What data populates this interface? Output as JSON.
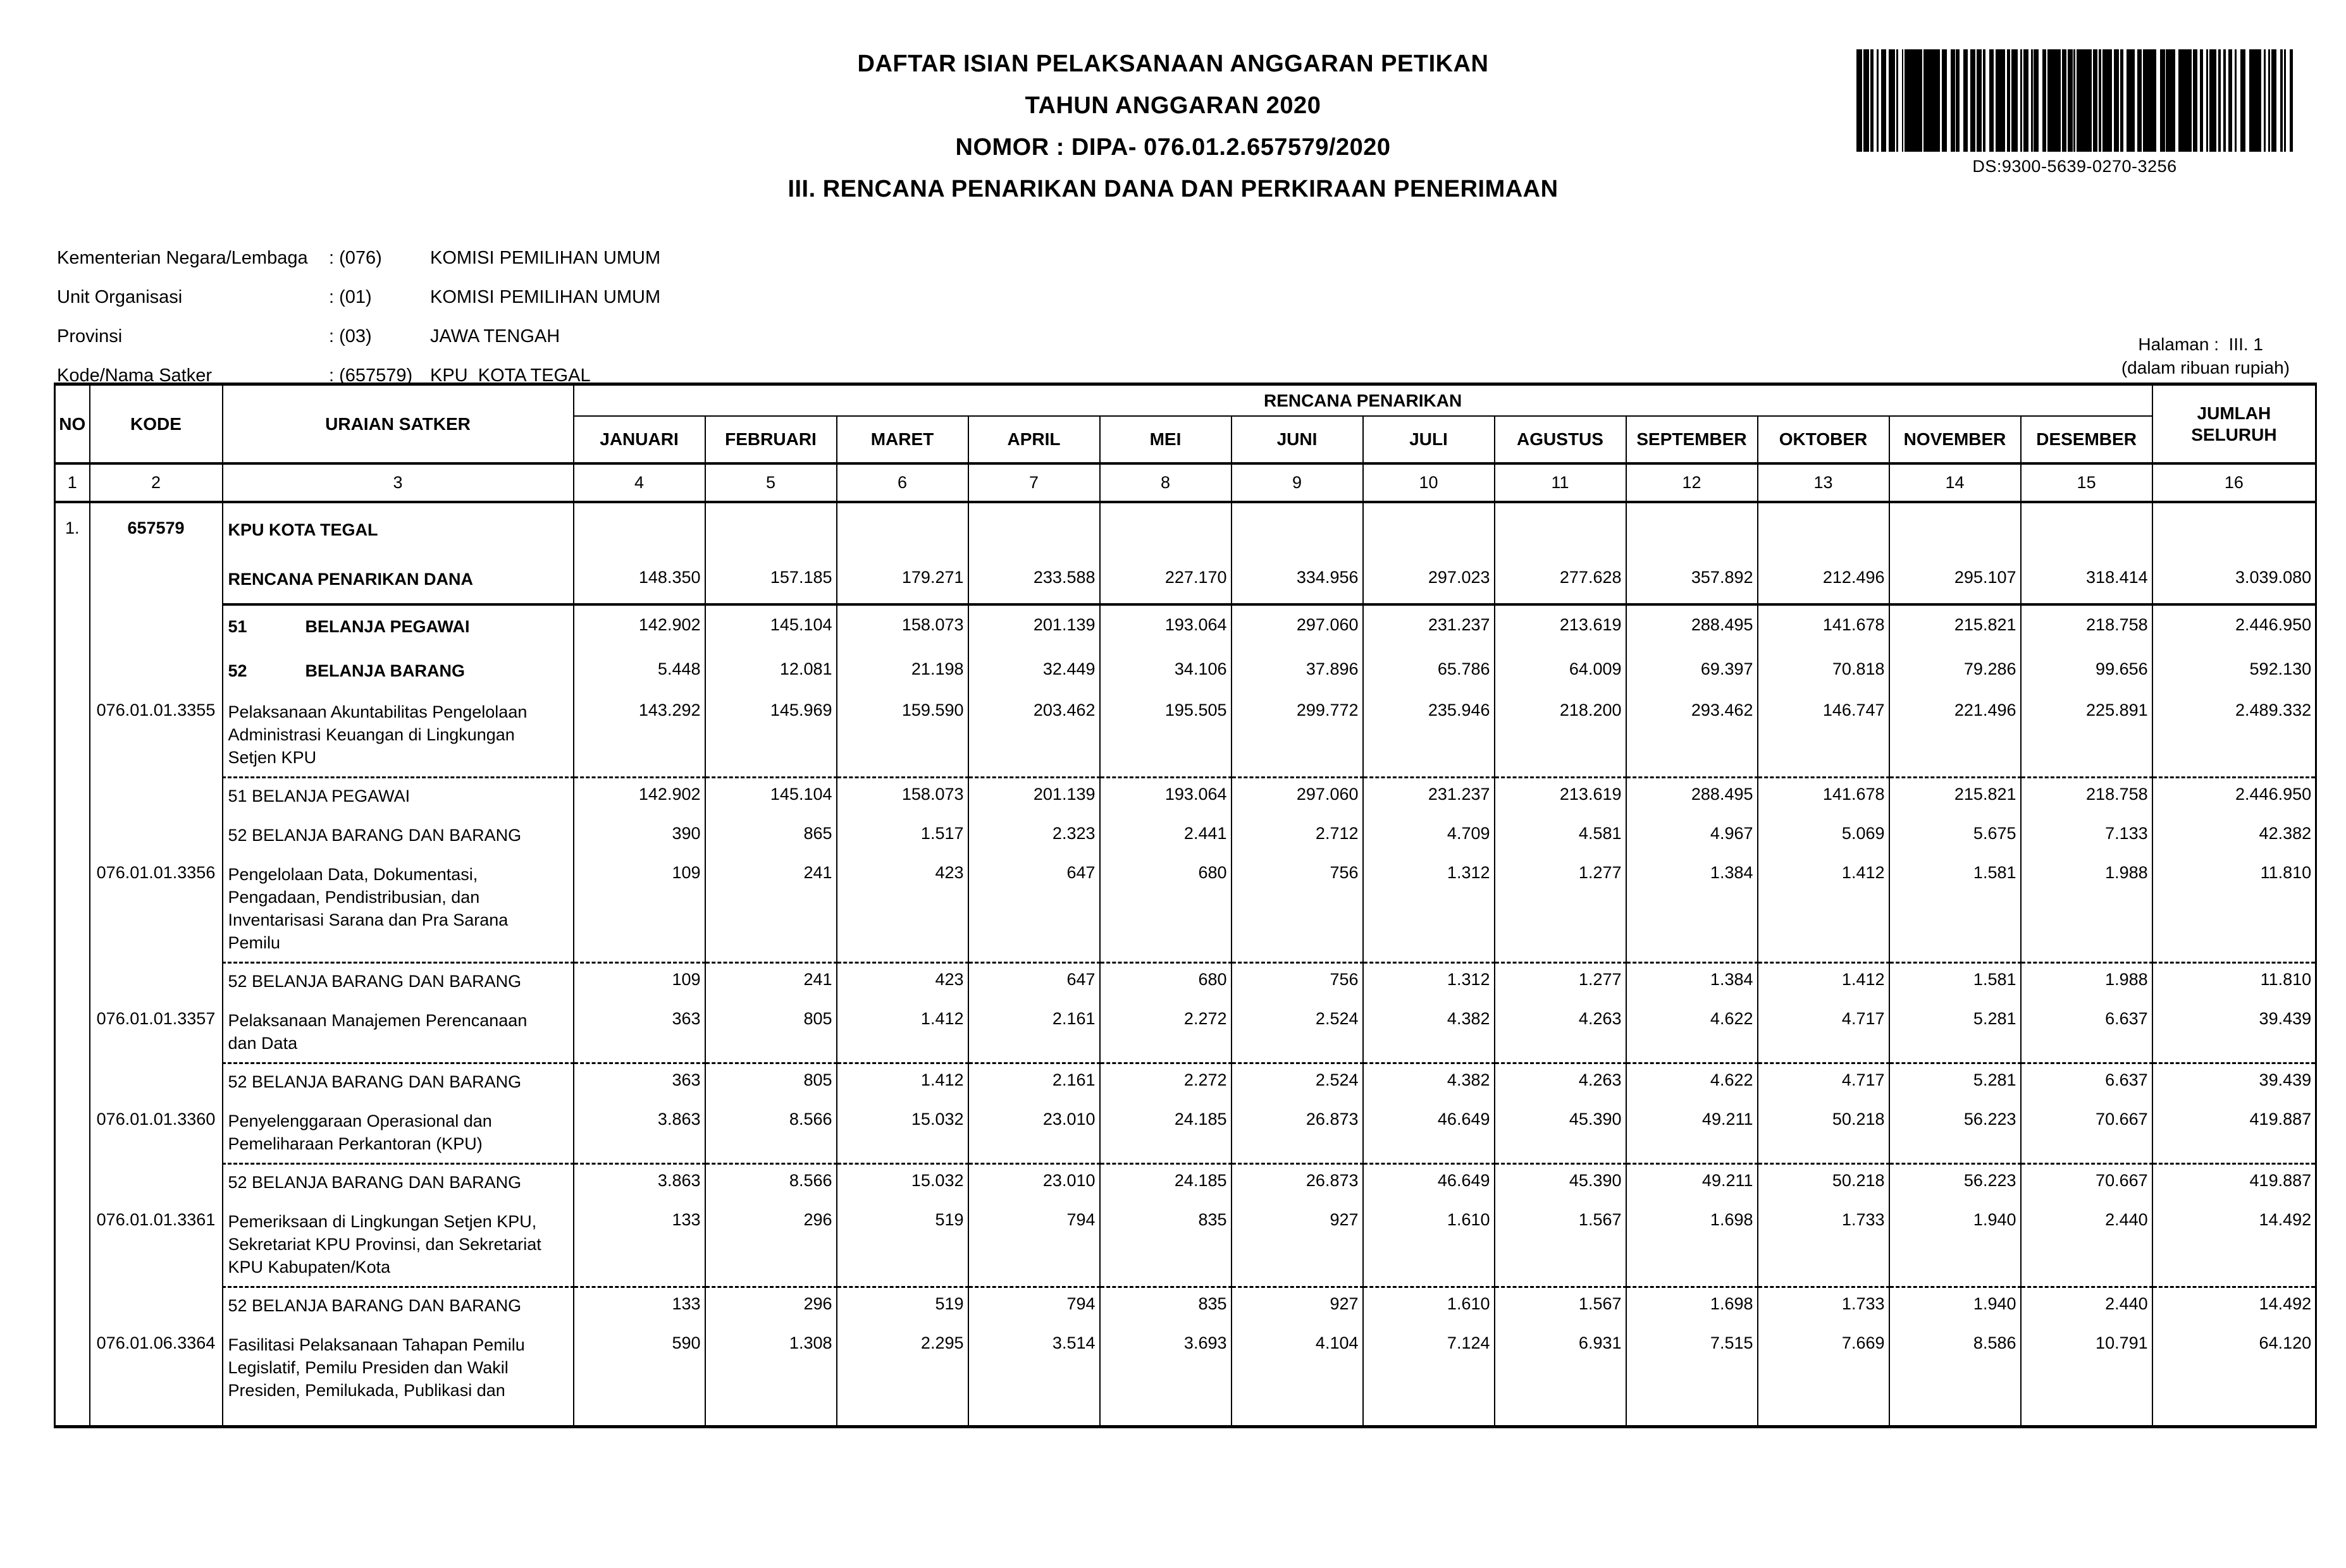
{
  "doc": {
    "title1": "DAFTAR ISIAN PELAKSANAAN ANGGARAN PETIKAN",
    "title2": "TAHUN ANGGARAN 2020",
    "title3": "NOMOR :  DIPA- 076.01.2.657579/2020",
    "title4": "III. RENCANA PENARIKAN DANA DAN PERKIRAAN PENERIMAAN",
    "barcode_caption": "DS:9300-5639-0270-3256",
    "halaman": "Halaman :  III. 1",
    "unit_note": "(dalam ribuan rupiah)"
  },
  "meta": {
    "rows": [
      {
        "label": "Kementerian Negara/Lembaga",
        "code": ": (076)",
        "value": "KOMISI PEMILIHAN UMUM"
      },
      {
        "label": "Unit Organisasi",
        "code": ": (01)",
        "value": "KOMISI PEMILIHAN UMUM"
      },
      {
        "label": "Provinsi",
        "code": ": (03)",
        "value": "JAWA TENGAH"
      },
      {
        "label": "Kode/Nama Satker",
        "code": ": (657579)",
        "value": "KPU  KOTA TEGAL"
      }
    ]
  },
  "table": {
    "headers": {
      "no": "NO",
      "kode": "KODE",
      "uraian": "URAIAN SATKER",
      "group": "RENCANA PENARIKAN",
      "total": "JUMLAH SELURUH"
    },
    "months": [
      "JANUARI",
      "FEBRUARI",
      "MARET",
      "APRIL",
      "MEI",
      "JUNI",
      "JULI",
      "AGUSTUS",
      "SEPTEMBER",
      "OKTOBER",
      "NOVEMBER",
      "DESEMBER"
    ],
    "col_numbers": [
      "1",
      "2",
      "3",
      "4",
      "5",
      "6",
      "7",
      "8",
      "9",
      "10",
      "11",
      "12",
      "13",
      "14",
      "15",
      "16"
    ],
    "rows": [
      {
        "type": "satker",
        "no": "1.",
        "kode": "657579",
        "kode_bold": true,
        "bold": true,
        "uraian": [
          "KPU  KOTA TEGAL"
        ],
        "values": null
      },
      {
        "type": "subtotal",
        "bold": true,
        "solid_bottom": true,
        "uraian": [
          "RENCANA PENARIKAN DANA"
        ],
        "values": [
          "148.350",
          "157.185",
          "179.271",
          "233.588",
          "227.170",
          "334.956",
          "297.023",
          "277.628",
          "357.892",
          "212.496",
          "295.107",
          "318.414",
          "3.039.080"
        ]
      },
      {
        "type": "acct-main",
        "bold": true,
        "code2": "51",
        "uraian": [
          "BELANJA PEGAWAI"
        ],
        "values": [
          "142.902",
          "145.104",
          "158.073",
          "201.139",
          "193.064",
          "297.060",
          "231.237",
          "213.619",
          "288.495",
          "141.678",
          "215.821",
          "218.758",
          "2.446.950"
        ]
      },
      {
        "type": "acct-main",
        "bold": true,
        "code2": "52",
        "uraian": [
          "BELANJA BARANG"
        ],
        "values": [
          "5.448",
          "12.081",
          "21.198",
          "32.449",
          "34.106",
          "37.896",
          "65.786",
          "64.009",
          "69.397",
          "70.818",
          "79.286",
          "99.656",
          "592.130"
        ]
      },
      {
        "type": "program",
        "kode": "076.01.01.3355",
        "uraian": [
          "Pelaksanaan Akuntabilitas Pengelolaan",
          "Administrasi Keuangan di Lingkungan",
          "Setjen KPU"
        ],
        "values": [
          "143.292",
          "145.969",
          "159.590",
          "203.462",
          "195.505",
          "299.772",
          "235.946",
          "218.200",
          "293.462",
          "146.747",
          "221.496",
          "225.891",
          "2.489.332"
        ]
      },
      {
        "type": "acct",
        "dashed_top": true,
        "uraian": [
          "51 BELANJA PEGAWAI"
        ],
        "values": [
          "142.902",
          "145.104",
          "158.073",
          "201.139",
          "193.064",
          "297.060",
          "231.237",
          "213.619",
          "288.495",
          "141.678",
          "215.821",
          "218.758",
          "2.446.950"
        ]
      },
      {
        "type": "acct",
        "uraian": [
          "52 BELANJA BARANG DAN BARANG"
        ],
        "values": [
          "390",
          "865",
          "1.517",
          "2.323",
          "2.441",
          "2.712",
          "4.709",
          "4.581",
          "4.967",
          "5.069",
          "5.675",
          "7.133",
          "42.382"
        ]
      },
      {
        "type": "program",
        "kode": "076.01.01.3356",
        "uraian": [
          "Pengelolaan Data, Dokumentasi,",
          "Pengadaan, Pendistribusian, dan",
          "Inventarisasi Sarana dan Pra Sarana",
          "Pemilu"
        ],
        "values": [
          "109",
          "241",
          "423",
          "647",
          "680",
          "756",
          "1.312",
          "1.277",
          "1.384",
          "1.412",
          "1.581",
          "1.988",
          "11.810"
        ]
      },
      {
        "type": "acct",
        "dashed_top": true,
        "uraian": [
          "52 BELANJA BARANG DAN BARANG"
        ],
        "values": [
          "109",
          "241",
          "423",
          "647",
          "680",
          "756",
          "1.312",
          "1.277",
          "1.384",
          "1.412",
          "1.581",
          "1.988",
          "11.810"
        ]
      },
      {
        "type": "program",
        "kode": "076.01.01.3357",
        "uraian": [
          "Pelaksanaan Manajemen Perencanaan",
          "dan Data"
        ],
        "values": [
          "363",
          "805",
          "1.412",
          "2.161",
          "2.272",
          "2.524",
          "4.382",
          "4.263",
          "4.622",
          "4.717",
          "5.281",
          "6.637",
          "39.439"
        ]
      },
      {
        "type": "acct",
        "dashed_top": true,
        "uraian": [
          "52 BELANJA BARANG DAN BARANG"
        ],
        "values": [
          "363",
          "805",
          "1.412",
          "2.161",
          "2.272",
          "2.524",
          "4.382",
          "4.263",
          "4.622",
          "4.717",
          "5.281",
          "6.637",
          "39.439"
        ]
      },
      {
        "type": "program",
        "kode": "076.01.01.3360",
        "uraian": [
          "Penyelenggaraan Operasional dan",
          "Pemeliharaan Perkantoran (KPU)"
        ],
        "values": [
          "3.863",
          "8.566",
          "15.032",
          "23.010",
          "24.185",
          "26.873",
          "46.649",
          "45.390",
          "49.211",
          "50.218",
          "56.223",
          "70.667",
          "419.887"
        ]
      },
      {
        "type": "acct",
        "dashed_top": true,
        "uraian": [
          "52 BELANJA BARANG DAN BARANG"
        ],
        "values": [
          "3.863",
          "8.566",
          "15.032",
          "23.010",
          "24.185",
          "26.873",
          "46.649",
          "45.390",
          "49.211",
          "50.218",
          "56.223",
          "70.667",
          "419.887"
        ]
      },
      {
        "type": "program",
        "kode": "076.01.01.3361",
        "uraian": [
          "Pemeriksaan di Lingkungan Setjen KPU,",
          "Sekretariat KPU Provinsi, dan Sekretariat",
          "KPU Kabupaten/Kota"
        ],
        "values": [
          "133",
          "296",
          "519",
          "794",
          "835",
          "927",
          "1.610",
          "1.567",
          "1.698",
          "1.733",
          "1.940",
          "2.440",
          "14.492"
        ]
      },
      {
        "type": "acct",
        "dashed_top": true,
        "uraian": [
          "52 BELANJA BARANG DAN BARANG"
        ],
        "values": [
          "133",
          "296",
          "519",
          "794",
          "835",
          "927",
          "1.610",
          "1.567",
          "1.698",
          "1.733",
          "1.940",
          "2.440",
          "14.492"
        ]
      },
      {
        "type": "program",
        "kode": "076.01.06.3364",
        "uraian": [
          "Fasilitasi Pelaksanaan Tahapan Pemilu",
          "Legislatif, Pemilu Presiden dan Wakil",
          "Presiden, Pemilukada, Publikasi dan"
        ],
        "values": [
          "590",
          "1.308",
          "2.295",
          "3.514",
          "3.693",
          "4.104",
          "7.124",
          "6.931",
          "7.515",
          "7.669",
          "8.586",
          "10.791",
          "64.120"
        ]
      },
      {
        "type": "filler",
        "uraian": [],
        "values": null
      }
    ]
  }
}
